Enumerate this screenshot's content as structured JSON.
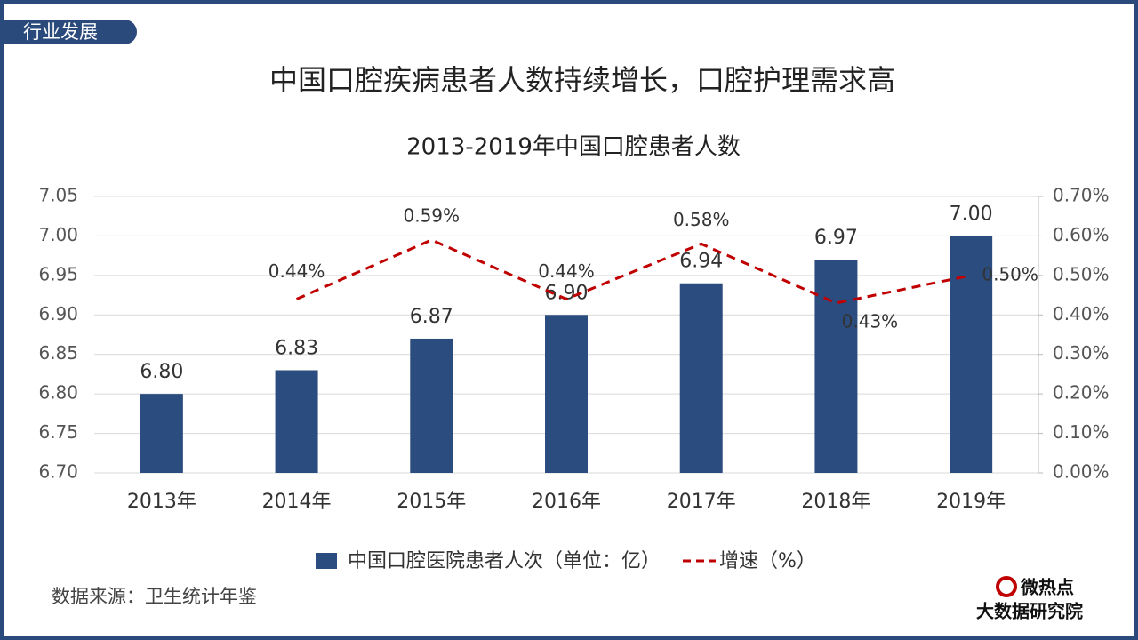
{
  "header": {
    "section": "行业发展",
    "title": "中国口腔疾病患者人数持续增长，口腔护理需求高"
  },
  "chart_data": {
    "type": "bar",
    "title": "2013-2019年中国口腔患者人数",
    "categories": [
      "2013年",
      "2014年",
      "2015年",
      "2016年",
      "2017年",
      "2018年",
      "2019年"
    ],
    "series": [
      {
        "name": "中国口腔医院患者人次（单位：亿）",
        "type": "bar",
        "axis": "y",
        "color": "#2b4c7e",
        "values": [
          6.8,
          6.83,
          6.87,
          6.9,
          6.94,
          6.97,
          7.0
        ],
        "value_labels": [
          "6.80",
          "6.83",
          "6.87",
          "6.90",
          "6.94",
          "6.97",
          "7.00"
        ]
      },
      {
        "name": "增速（%）",
        "type": "line",
        "axis": "y2",
        "color": "#c00000",
        "values": [
          null,
          0.44,
          0.59,
          0.44,
          0.58,
          0.43,
          0.5
        ],
        "value_labels": [
          null,
          "0.44%",
          "0.59%",
          "0.44%",
          "0.58%",
          "0.43%",
          "0.50%"
        ]
      }
    ],
    "ylim": [
      6.7,
      7.05
    ],
    "yticks": [
      {
        "value": 6.7,
        "label": "6.70"
      },
      {
        "value": 6.75,
        "label": "6.75"
      },
      {
        "value": 6.8,
        "label": "6.80"
      },
      {
        "value": 6.85,
        "label": "6.85"
      },
      {
        "value": 6.9,
        "label": "6.90"
      },
      {
        "value": 6.95,
        "label": "6.95"
      },
      {
        "value": 7.0,
        "label": "7.00"
      },
      {
        "value": 7.05,
        "label": "7.05"
      }
    ],
    "y2lim": [
      0,
      0.7
    ],
    "y2ticks": [
      {
        "value": 0,
        "label": "0.00%"
      },
      {
        "value": 0.1,
        "label": "0.10%"
      },
      {
        "value": 0.2,
        "label": "0.20%"
      },
      {
        "value": 0.3,
        "label": "0.30%"
      },
      {
        "value": 0.4,
        "label": "0.40%"
      },
      {
        "value": 0.5,
        "label": "0.50%"
      },
      {
        "value": 0.6,
        "label": "0.60%"
      },
      {
        "value": 0.7,
        "label": "0.70%"
      }
    ],
    "grid": true,
    "legend": "bottom"
  },
  "source": "数据来源：卫生统计年鉴",
  "logo": {
    "line1": "微热点",
    "line2": "大数据研究院"
  }
}
